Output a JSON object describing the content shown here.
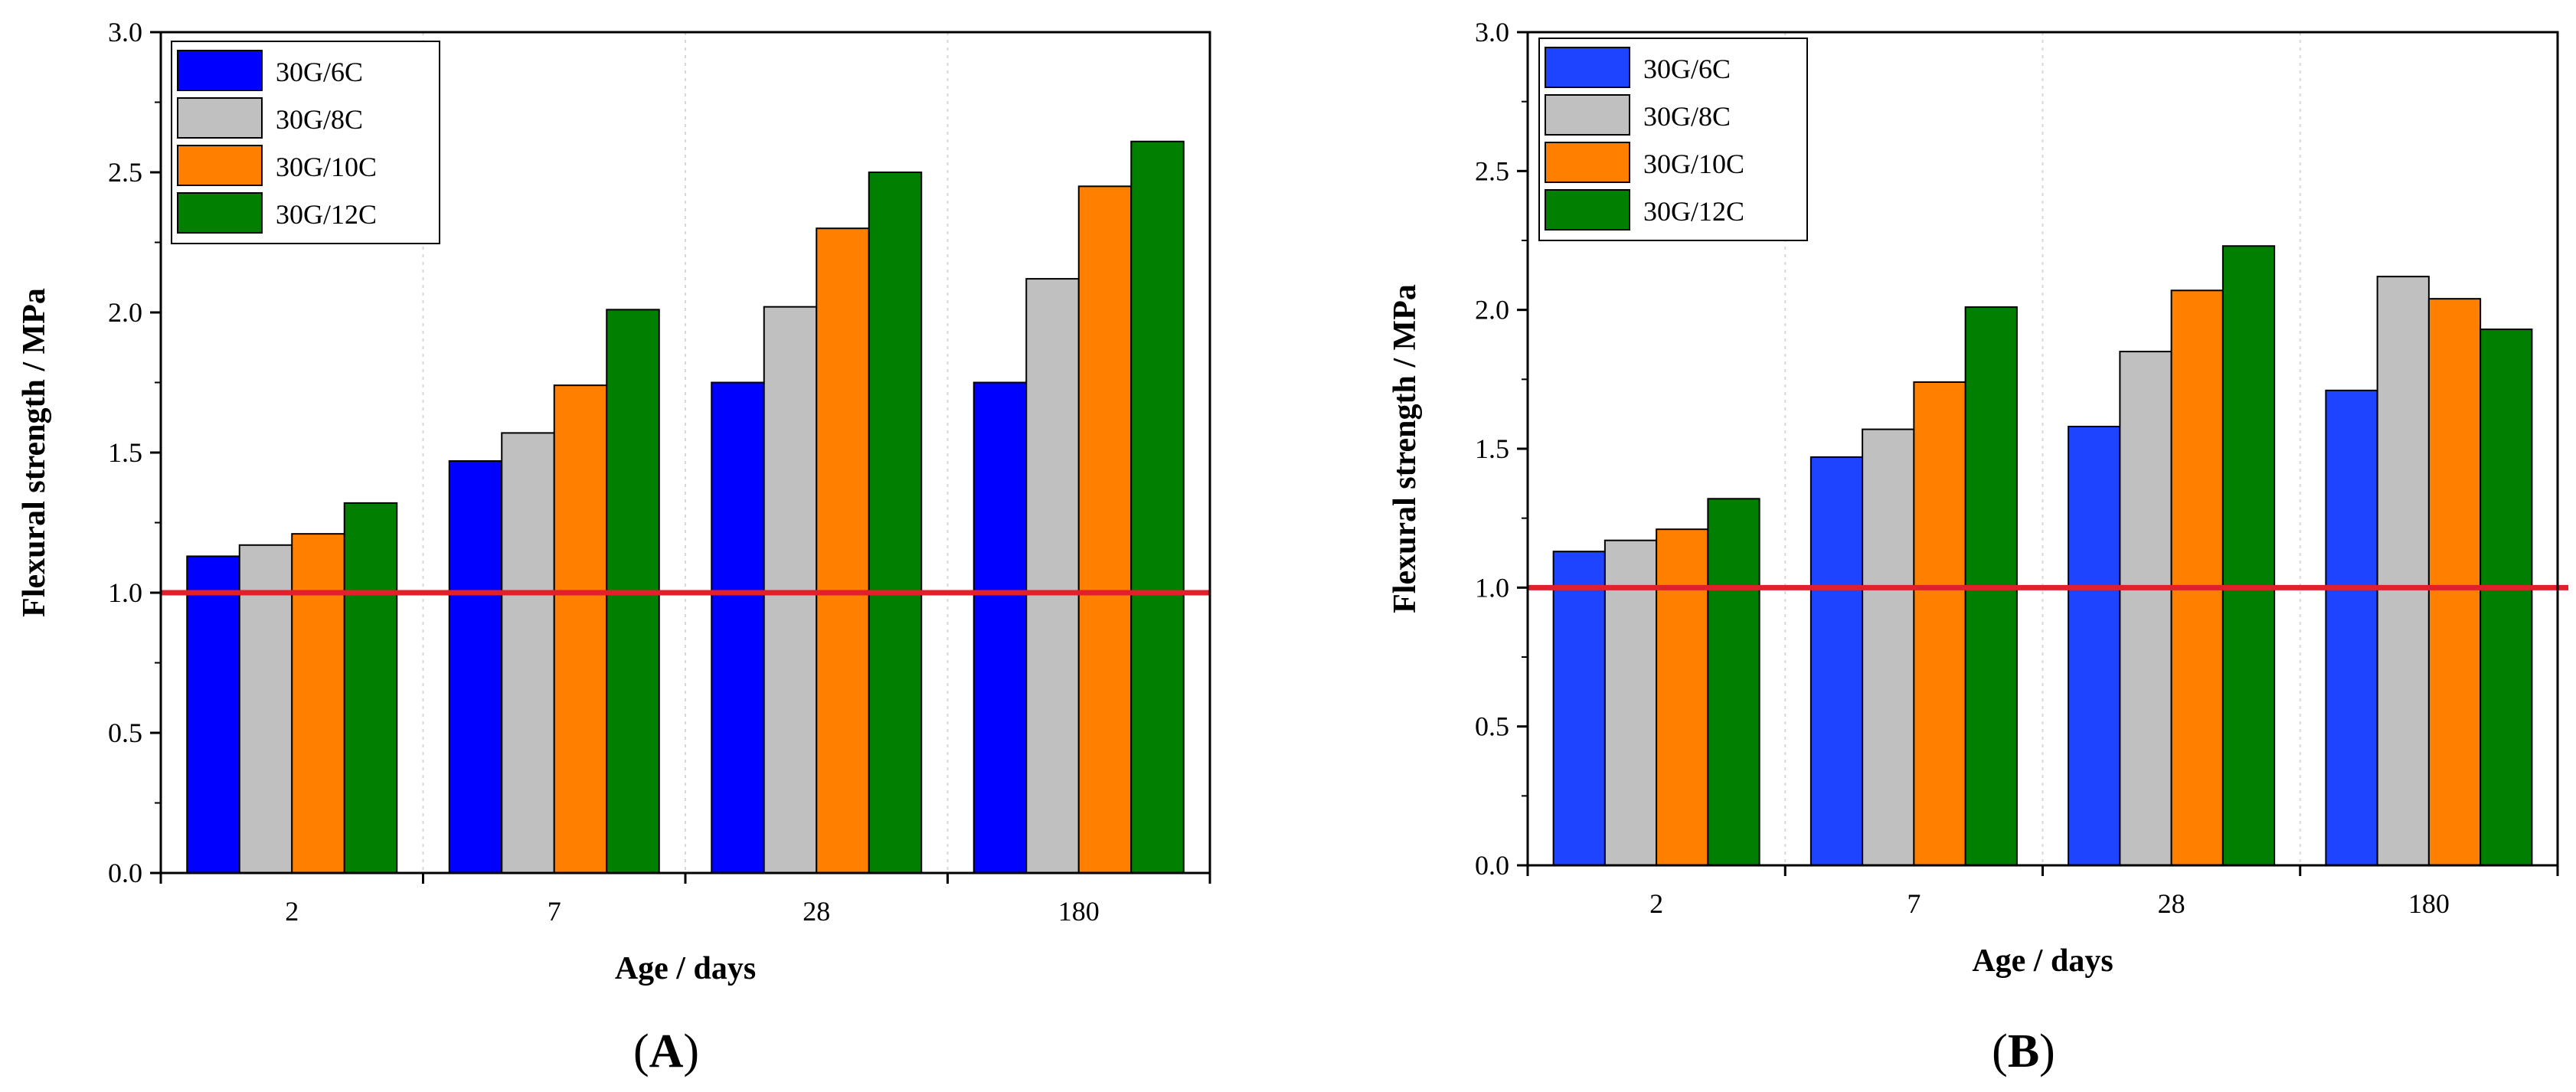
{
  "chart_data": [
    {
      "panel_label": "A",
      "type": "bar",
      "categories": [
        "2",
        "7",
        "28",
        "180"
      ],
      "series": [
        {
          "name": "30G/6C",
          "values": [
            1.13,
            1.47,
            1.75,
            1.75
          ]
        },
        {
          "name": "30G/8C",
          "values": [
            1.17,
            1.57,
            2.02,
            2.12
          ]
        },
        {
          "name": "30G/10C",
          "values": [
            1.21,
            1.74,
            2.3,
            2.45
          ]
        },
        {
          "name": "30G/12C",
          "values": [
            1.32,
            2.01,
            2.5,
            2.61
          ]
        }
      ],
      "xlabel": "Age / days",
      "ylabel": "Flexural strength / MPa",
      "ylim": [
        0,
        3.0
      ],
      "yticks": [
        "0.0",
        "0.5",
        "1.0",
        "1.5",
        "2.0",
        "2.5",
        "3.0"
      ],
      "reference_line": 1.0,
      "legend_position": "top-left",
      "grid": "vertical dotted lines between categories",
      "colors": {
        "30G/6C": "#0000ff",
        "30G/8C": "#c0c0c0",
        "30G/10C": "#ff8000",
        "30G/12C": "#007f00",
        "reference_line": "#e0202a"
      }
    },
    {
      "panel_label": "B",
      "type": "bar",
      "categories": [
        "2",
        "7",
        "28",
        "180"
      ],
      "series": [
        {
          "name": "30G/6C",
          "values": [
            1.13,
            1.47,
            1.58,
            1.71
          ]
        },
        {
          "name": "30G/8C",
          "values": [
            1.17,
            1.57,
            1.85,
            2.12
          ]
        },
        {
          "name": "30G/10C",
          "values": [
            1.21,
            1.74,
            2.07,
            2.04
          ]
        },
        {
          "name": "30G/12C",
          "values": [
            1.32,
            2.01,
            2.23,
            1.93
          ]
        }
      ],
      "xlabel": "Age / days",
      "ylabel": "Flexural strength / MPa",
      "ylim": [
        0,
        3.0
      ],
      "yticks": [
        "0.0",
        "0.5",
        "1.0",
        "1.5",
        "2.0",
        "2.5",
        "3.0"
      ],
      "reference_line": 1.0,
      "legend_position": "top-left",
      "grid": "vertical dotted lines between categories",
      "colors": {
        "30G/6C": "#1f44ff",
        "30G/8C": "#c0c0c0",
        "30G/10C": "#ff8000",
        "30G/12C": "#007f00",
        "reference_line": "#e0202a"
      }
    }
  ]
}
